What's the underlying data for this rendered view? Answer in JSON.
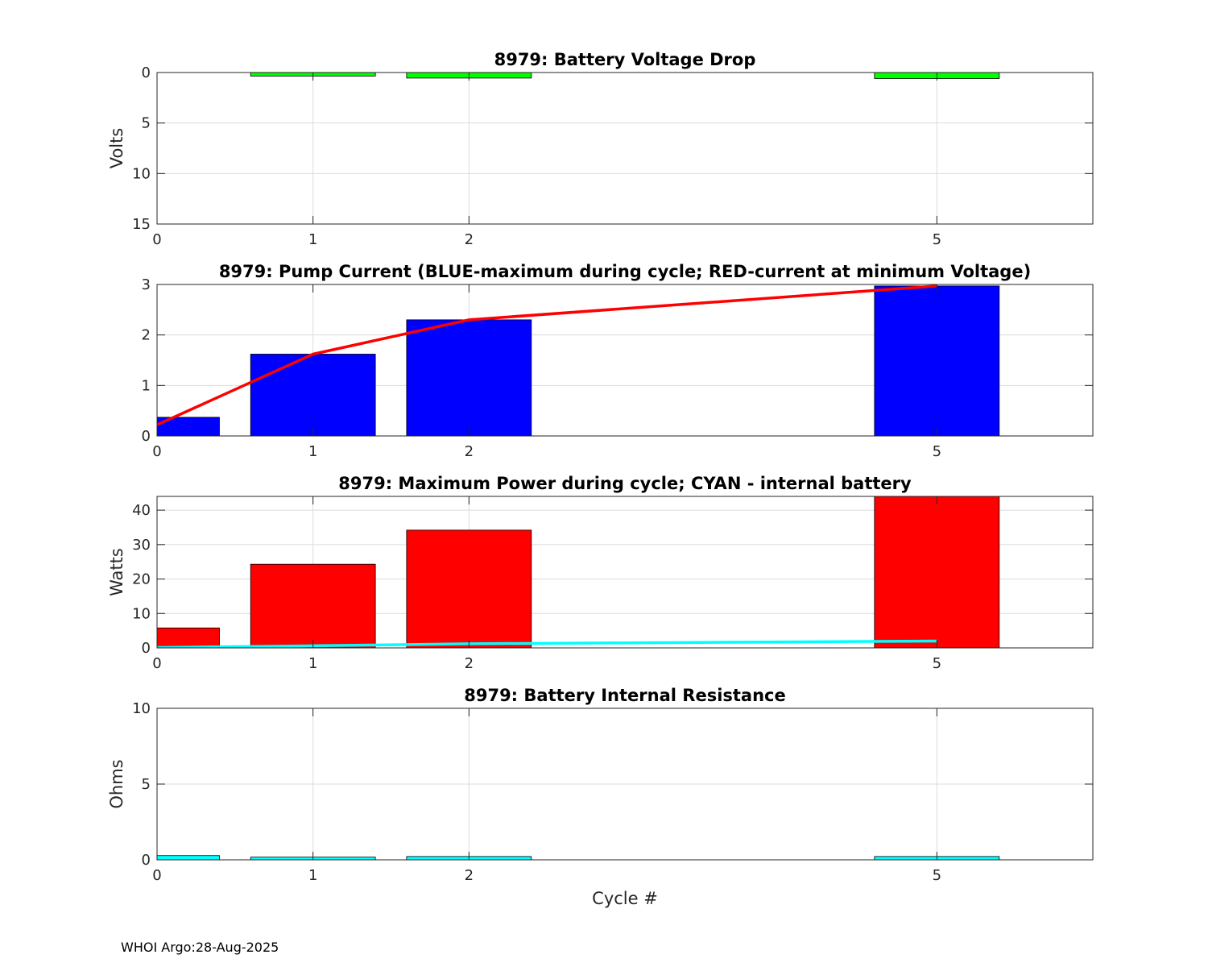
{
  "footer": "WHOI Argo:28-Aug-2025",
  "colors": {
    "grid": "#dcdcdc",
    "axis": "#262626"
  },
  "chart_data": [
    {
      "type": "bar",
      "title": "8979: Battery Voltage Drop",
      "xlabel": "",
      "ylabel": "Volts",
      "reverse_y": true,
      "xlim": [
        0,
        6
      ],
      "ylim": [
        0,
        15
      ],
      "xticks": [
        0,
        1,
        2,
        5
      ],
      "yticks": [
        0,
        5,
        10,
        15
      ],
      "bar_color": "#00ff00",
      "categories": [
        1,
        2,
        5
      ],
      "values": [
        0.35,
        0.55,
        0.6
      ]
    },
    {
      "type": "bar",
      "title": "8979: Pump Current (BLUE-maximum during cycle; RED-current at minimum Voltage)",
      "xlabel": "",
      "ylabel": "",
      "reverse_y": false,
      "xlim": [
        0,
        6
      ],
      "ylim": [
        0,
        3
      ],
      "xticks": [
        0,
        1,
        2,
        5
      ],
      "yticks": [
        0,
        1,
        2,
        3
      ],
      "bar_color": "#0000ff",
      "categories": [
        0,
        1,
        2,
        5
      ],
      "values": [
        0.37,
        1.62,
        2.3,
        2.97
      ],
      "line": {
        "name": "current at minimum Voltage",
        "color": "#ff0000",
        "x": [
          0,
          1,
          2,
          5
        ],
        "y": [
          0.22,
          1.62,
          2.3,
          2.97
        ]
      }
    },
    {
      "type": "bar",
      "title": "8979: Maximum Power during cycle; CYAN - internal battery",
      "xlabel": "",
      "ylabel": "Watts",
      "reverse_y": false,
      "xlim": [
        0,
        6
      ],
      "ylim": [
        0,
        44
      ],
      "xticks": [
        0,
        1,
        2,
        5
      ],
      "yticks": [
        0,
        10,
        20,
        30,
        40
      ],
      "bar_color": "#ff0000",
      "categories": [
        0,
        1,
        2,
        5
      ],
      "values": [
        5.8,
        24.3,
        34.2,
        44
      ],
      "line": {
        "name": "internal battery",
        "color": "#00ffff",
        "x": [
          0,
          1,
          2,
          5
        ],
        "y": [
          0.1,
          0.6,
          1.2,
          2.0
        ]
      }
    },
    {
      "type": "bar",
      "title": "8979: Battery Internal Resistance",
      "xlabel": "Cycle #",
      "ylabel": "Ohms",
      "reverse_y": false,
      "xlim": [
        0,
        6
      ],
      "ylim": [
        0,
        10
      ],
      "xticks": [
        0,
        1,
        2,
        5
      ],
      "yticks": [
        0,
        5,
        10
      ],
      "bar_color": "#00ffff",
      "categories": [
        0,
        1,
        2,
        5
      ],
      "values": [
        0.28,
        0.18,
        0.22,
        0.22
      ]
    }
  ]
}
